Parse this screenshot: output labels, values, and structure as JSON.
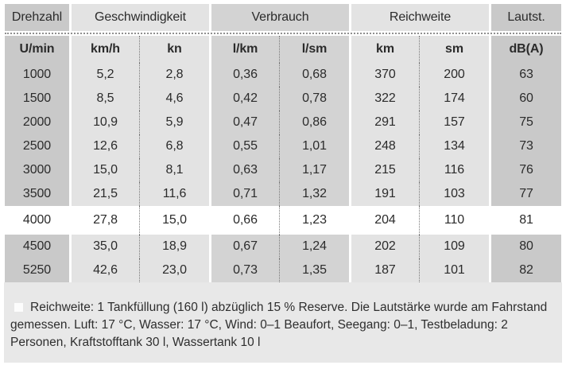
{
  "chart_data": {
    "type": "table",
    "column_groups": [
      {
        "label": "Drehzahl",
        "span": 1,
        "shade": "dark"
      },
      {
        "label": "Geschwindigkeit",
        "span": 2,
        "shade": "light"
      },
      {
        "label": "Verbrauch",
        "span": 2,
        "shade": "mid"
      },
      {
        "label": "Reichweite",
        "span": 2,
        "shade": "light"
      },
      {
        "label": "Lautst.",
        "span": 1,
        "shade": "dark"
      }
    ],
    "columns": [
      "U/min",
      "km/h",
      "kn",
      "l/km",
      "l/sm",
      "km",
      "sm",
      "dB(A)"
    ],
    "rows": [
      [
        "1000",
        "5,2",
        "2,8",
        "0,36",
        "0,68",
        "370",
        "200",
        "63"
      ],
      [
        "1500",
        "8,5",
        "4,6",
        "0,42",
        "0,78",
        "322",
        "174",
        "60"
      ],
      [
        "2000",
        "10,9",
        "5,9",
        "0,47",
        "0,86",
        "291",
        "157",
        "75"
      ],
      [
        "2500",
        "12,6",
        "6,8",
        "0,55",
        "1,01",
        "248",
        "134",
        "73"
      ],
      [
        "3000",
        "15,0",
        "8,1",
        "0,63",
        "1,17",
        "215",
        "116",
        "76"
      ],
      [
        "3500",
        "21,5",
        "11,6",
        "0,71",
        "1,32",
        "191",
        "103",
        "77"
      ],
      [
        "4000",
        "27,8",
        "15,0",
        "0,66",
        "1,23",
        "204",
        "110",
        "81"
      ],
      [
        "4500",
        "35,0",
        "18,9",
        "0,67",
        "1,24",
        "202",
        "109",
        "80"
      ],
      [
        "5250",
        "42,6",
        "23,0",
        "0,73",
        "1,35",
        "187",
        "101",
        "82"
      ]
    ],
    "highlighted_row_index": 6,
    "footnote": "Reichweite: 1 Tankfüllung (160 l) abzüglich 15 % Reserve. Die Lautstärke wurde am Fahrstand gemessen. Luft: 17 °C, Wasser: 17 °C, Wind: 0–1 Beaufort, Seegang: 0–1, Testbeladung: 2 Personen, Kraftstofftank 30 l, Wassertank 10 l"
  },
  "layout_hints": {
    "col_shades": [
      "dark",
      "light",
      "light",
      "mid",
      "mid",
      "light",
      "light",
      "dark"
    ]
  },
  "colors": {
    "shade_dark": "#c9c9c9",
    "shade_mid": "#d3d3d3",
    "shade_light": "#e3e3e3",
    "highlight_row": "#ffffff",
    "footer_bg": "#e8e8e8",
    "text": "#2b2b2b"
  },
  "footnote": {
    "bullet_icon": "white-square",
    "text": "Reichweite: 1 Tankfüllung (160 l) abzüglich 15 % Reserve. Die Lautstärke wurde am Fahrstand gemessen. Luft: 17 °C, Wasser: 17 °C, Wind: 0–1 Beaufort, Seegang: 0–1, Testbeladung: 2 Personen, Kraftstofftank 30 l, Wassertank 10 l"
  }
}
